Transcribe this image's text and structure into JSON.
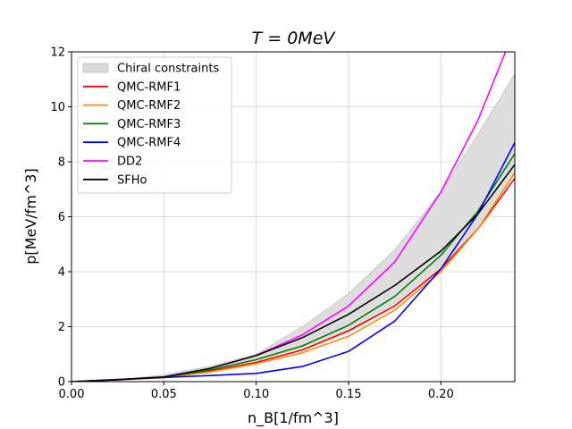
{
  "chart_data": {
    "type": "line",
    "title": "T = 0MeV",
    "xlabel": "n_B[1/fm^3]",
    "ylabel": "p[MeV/fm^3]",
    "xlim": [
      0.0,
      0.24
    ],
    "ylim": [
      0,
      12
    ],
    "xticks": [
      0.0,
      0.05,
      0.1,
      0.15,
      0.2
    ],
    "xtick_labels": [
      "0.00",
      "0.05",
      "0.10",
      "0.15",
      "0.20"
    ],
    "yticks": [
      0,
      2,
      4,
      6,
      8,
      10,
      12
    ],
    "ytick_labels": [
      "0",
      "2",
      "4",
      "6",
      "8",
      "10",
      "12"
    ],
    "grid": true,
    "legend_position": "top-left",
    "band": {
      "name": "Chiral constraints",
      "color": "#d9d9d9",
      "x": [
        0.0,
        0.025,
        0.05,
        0.075,
        0.1,
        0.125,
        0.15,
        0.175,
        0.2,
        0.22,
        0.24
      ],
      "lower": [
        0.0,
        0.04,
        0.15,
        0.38,
        0.7,
        1.15,
        1.8,
        2.75,
        4.1,
        5.55,
        7.6
      ],
      "upper": [
        0.0,
        0.06,
        0.25,
        0.55,
        1.0,
        2.0,
        3.2,
        4.8,
        6.9,
        9.0,
        11.2
      ]
    },
    "series": [
      {
        "name": "QMC-RMF1",
        "color": "#ff0000",
        "x": [
          0.0,
          0.025,
          0.05,
          0.075,
          0.1,
          0.125,
          0.15,
          0.175,
          0.2,
          0.22,
          0.24
        ],
        "values": [
          0.0,
          0.07,
          0.15,
          0.38,
          0.7,
          1.15,
          1.85,
          2.75,
          4.1,
          5.55,
          7.4
        ]
      },
      {
        "name": "QMC-RMF2",
        "color": "#ff8c00",
        "x": [
          0.0,
          0.025,
          0.05,
          0.075,
          0.1,
          0.125,
          0.15,
          0.175,
          0.2,
          0.22,
          0.24
        ],
        "values": [
          0.0,
          0.07,
          0.14,
          0.35,
          0.65,
          1.05,
          1.65,
          2.6,
          4.0,
          5.55,
          7.6
        ]
      },
      {
        "name": "QMC-RMF3",
        "color": "#008000",
        "x": [
          0.0,
          0.025,
          0.05,
          0.075,
          0.1,
          0.125,
          0.15,
          0.175,
          0.2,
          0.22,
          0.24
        ],
        "values": [
          0.0,
          0.07,
          0.16,
          0.42,
          0.8,
          1.3,
          2.05,
          3.1,
          4.6,
          6.2,
          8.3
        ]
      },
      {
        "name": "QMC-RMF4",
        "color": "#0000ff",
        "x": [
          0.0,
          0.025,
          0.05,
          0.075,
          0.1,
          0.125,
          0.15,
          0.175,
          0.2,
          0.22,
          0.24
        ],
        "values": [
          0.0,
          0.08,
          0.15,
          0.22,
          0.3,
          0.55,
          1.1,
          2.2,
          4.1,
          6.1,
          8.7
        ]
      },
      {
        "name": "DD2",
        "color": "#ff00ff",
        "x": [
          0.0,
          0.025,
          0.05,
          0.075,
          0.1,
          0.125,
          0.15,
          0.175,
          0.2,
          0.22,
          0.235
        ],
        "values": [
          0.0,
          0.07,
          0.17,
          0.48,
          0.95,
          1.7,
          2.75,
          4.35,
          6.9,
          9.5,
          12.0
        ]
      },
      {
        "name": "SFHo",
        "color": "#000000",
        "x": [
          0.0,
          0.025,
          0.05,
          0.075,
          0.1,
          0.125,
          0.15,
          0.175,
          0.2,
          0.22,
          0.24
        ],
        "values": [
          0.0,
          0.07,
          0.17,
          0.48,
          0.95,
          1.6,
          2.45,
          3.5,
          4.75,
          6.1,
          7.9
        ]
      }
    ]
  }
}
